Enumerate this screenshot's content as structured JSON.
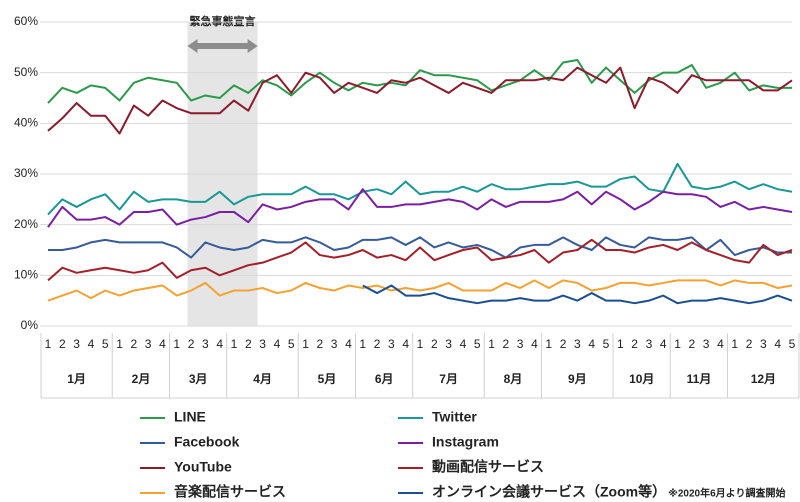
{
  "chart_data": {
    "type": "line",
    "annotation": "緊急事態宣言",
    "categories": [
      "1",
      "2",
      "3",
      "4",
      "5",
      "1",
      "2",
      "3",
      "4",
      "1",
      "2",
      "3",
      "4",
      "1",
      "2",
      "3",
      "4",
      "5",
      "1",
      "2",
      "3",
      "4",
      "1",
      "2",
      "3",
      "4",
      "1",
      "2",
      "3",
      "4",
      "5",
      "1",
      "2",
      "3",
      "4",
      "1",
      "2",
      "3",
      "4",
      "5",
      "1",
      "2",
      "3",
      "4",
      "1",
      "2",
      "3",
      "4",
      "1",
      "2",
      "3",
      "4",
      "5"
    ],
    "month_groups": [
      {
        "label": "1月",
        "weeks": 5
      },
      {
        "label": "2月",
        "weeks": 4
      },
      {
        "label": "3月",
        "weeks": 4
      },
      {
        "label": "4月",
        "weeks": 5
      },
      {
        "label": "5月",
        "weeks": 4
      },
      {
        "label": "6月",
        "weeks": 4
      },
      {
        "label": "7月",
        "weeks": 5
      },
      {
        "label": "8月",
        "weeks": 4
      },
      {
        "label": "9月",
        "weeks": 5
      },
      {
        "label": "10月",
        "weeks": 4
      },
      {
        "label": "11月",
        "weeks": 4
      },
      {
        "label": "12月",
        "weeks": 5
      }
    ],
    "ylim": [
      0,
      60
    ],
    "yticks": [
      {
        "value": 0,
        "label": "0%"
      },
      {
        "value": 10,
        "label": "10%"
      },
      {
        "value": 20,
        "label": "20%"
      },
      {
        "value": 30,
        "label": "30%"
      },
      {
        "value": 40,
        "label": "40%"
      },
      {
        "value": 50,
        "label": "50%"
      },
      {
        "value": 60,
        "label": "60%"
      }
    ],
    "grid": true,
    "legend_note": "※2020年6月より調査開始",
    "series": [
      {
        "name": "LINE",
        "color": "#2b9a4a",
        "values": [
          44,
          47,
          46,
          47.5,
          47,
          44.5,
          48,
          49,
          48.5,
          48,
          44.5,
          45.5,
          45,
          47.5,
          46,
          48.5,
          47.5,
          45.5,
          48,
          50,
          48,
          46.5,
          48,
          47.5,
          48,
          47.5,
          50.5,
          49.5,
          49.5,
          49,
          48.5,
          46.5,
          47.5,
          48.5,
          50.5,
          48.5,
          52,
          52.5,
          48,
          51,
          48.5,
          46,
          48.5,
          50,
          50,
          51.5,
          47,
          48,
          50,
          46.5,
          47.5,
          47,
          47
        ]
      },
      {
        "name": "Twitter",
        "color": "#1a9797",
        "values": [
          22,
          25,
          23.5,
          25,
          26,
          23,
          26.5,
          24.5,
          25,
          25,
          24.5,
          24.5,
          26.5,
          24,
          25.5,
          26,
          26,
          26,
          27.5,
          26,
          26,
          25,
          26.5,
          27,
          26,
          28.5,
          26,
          26.5,
          26.5,
          27.5,
          26.5,
          28,
          27,
          27,
          27.5,
          28,
          28,
          28.5,
          27.5,
          27.5,
          29,
          29.5,
          27,
          26.5,
          32,
          27.5,
          27,
          27.5,
          28.5,
          27,
          28,
          27,
          26.5
        ]
      },
      {
        "name": "Facebook",
        "color": "#365b9b",
        "values": [
          15,
          15,
          15.5,
          16.5,
          17,
          16.5,
          16.5,
          16.5,
          16.5,
          15.5,
          13.5,
          16.5,
          15.5,
          15,
          15.5,
          17,
          16.5,
          16.5,
          17.5,
          16.5,
          15,
          15.5,
          17,
          17,
          17.5,
          16,
          17.5,
          15.5,
          16.5,
          15.5,
          16,
          15,
          13.5,
          15.5,
          16,
          16,
          17.5,
          16,
          15,
          17.5,
          16,
          15.5,
          17.5,
          17,
          17,
          17.5,
          15,
          17,
          14,
          15,
          15.5,
          14.5,
          14.5
        ]
      },
      {
        "name": "Instagram",
        "color": "#7b1fa2",
        "values": [
          19.5,
          23.5,
          21,
          21,
          21.5,
          20,
          22.5,
          22.5,
          23,
          20,
          21,
          21.5,
          22.5,
          22.5,
          20.5,
          24,
          23,
          23.5,
          24.5,
          25,
          25,
          23,
          27,
          23.5,
          23.5,
          24,
          24,
          24.5,
          25,
          24.5,
          23,
          25,
          23.5,
          24.5,
          24.5,
          24.5,
          25,
          26.5,
          24,
          26.5,
          25,
          23,
          24.5,
          26.5,
          26,
          26,
          25.5,
          23.5,
          24.5,
          23,
          23.5,
          23,
          22.5
        ]
      },
      {
        "name": "YouTube",
        "color": "#8b1a2b",
        "values": [
          38.5,
          41,
          44,
          41.5,
          41.5,
          38,
          43.5,
          41.5,
          44.5,
          43,
          42,
          42,
          42,
          44.5,
          42.5,
          48,
          49.5,
          46,
          50,
          49,
          46,
          48,
          47,
          46,
          48.5,
          48,
          49,
          47.5,
          46,
          48,
          47,
          46,
          48.5,
          48.5,
          48.5,
          49,
          48.5,
          51,
          49.5,
          48,
          51,
          43,
          49,
          48,
          46,
          49.5,
          48.5,
          48.5,
          48.5,
          48.5,
          46.5,
          46.5,
          48.5
        ]
      },
      {
        "name": "動画配信サービス",
        "color": "#a3202a",
        "values": [
          9,
          11.5,
          10.5,
          11,
          11.5,
          11,
          10.5,
          11,
          12.5,
          9.5,
          11,
          11.5,
          10,
          11,
          12,
          12.5,
          13.5,
          14.5,
          16.5,
          14,
          13.5,
          14,
          15,
          13.5,
          14,
          13,
          15.5,
          13,
          14,
          15,
          15.5,
          13,
          13.5,
          14,
          15,
          12.5,
          14.5,
          15,
          17,
          15,
          15,
          14.5,
          15.5,
          16,
          15,
          16.5,
          15,
          14,
          13,
          12.5,
          16,
          14,
          15
        ]
      },
      {
        "name": "音楽配信サービス",
        "color": "#f5a233",
        "values": [
          5,
          6,
          7,
          5.5,
          7,
          6,
          7,
          7.5,
          8,
          6,
          7,
          8.5,
          6,
          7,
          7,
          7.5,
          6.5,
          7,
          8.5,
          7.5,
          7,
          8,
          7.5,
          8,
          7,
          7.5,
          7,
          7.5,
          8.5,
          7,
          7,
          7,
          8.5,
          7.5,
          9,
          7.5,
          9,
          8.5,
          7,
          7.5,
          8.5,
          8.5,
          8,
          8.5,
          9,
          9,
          9,
          8,
          9,
          8.5,
          8.5,
          7.5,
          8
        ]
      },
      {
        "name": "オンライン会議サービス（Zoom等）",
        "color": "#1b4f8f",
        "values": [
          null,
          null,
          null,
          null,
          null,
          null,
          null,
          null,
          null,
          null,
          null,
          null,
          null,
          null,
          null,
          null,
          null,
          null,
          null,
          null,
          null,
          null,
          8,
          6.5,
          8,
          6,
          6,
          6.5,
          5.5,
          5,
          4.5,
          5,
          5,
          5.5,
          5,
          5,
          6,
          5,
          6.5,
          5,
          5,
          4.5,
          5,
          6,
          4.5,
          5,
          5,
          5.5,
          5,
          4.5,
          5,
          6,
          5
        ]
      }
    ]
  }
}
